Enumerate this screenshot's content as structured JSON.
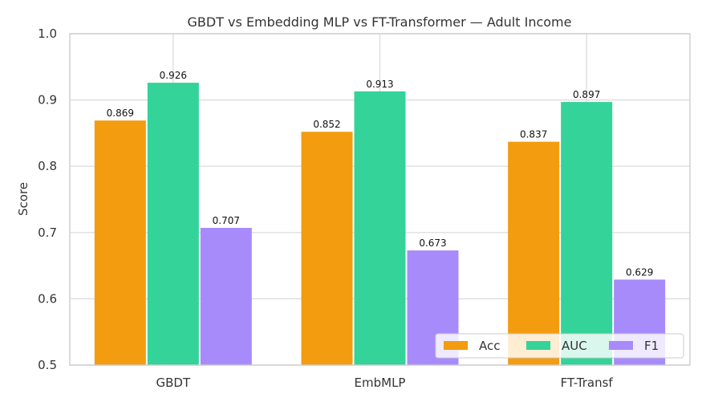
{
  "chart_data": {
    "type": "bar",
    "title": "GBDT vs Embedding MLP vs FT-Transformer — Adult Income",
    "xlabel": "",
    "ylabel": "Score",
    "ylim": [
      0.5,
      1.0
    ],
    "yticks": [
      "0.5",
      "0.6",
      "0.7",
      "0.8",
      "0.9",
      "1.0"
    ],
    "categories": [
      "GBDT",
      "EmbMLP",
      "FT-Transf"
    ],
    "series": [
      {
        "name": "Acc",
        "color": "#f39c0f",
        "values": [
          0.869,
          0.852,
          0.837
        ],
        "labels": [
          "0.869",
          "0.852",
          "0.837"
        ]
      },
      {
        "name": "AUC",
        "color": "#34d399",
        "values": [
          0.926,
          0.913,
          0.897
        ],
        "labels": [
          "0.926",
          "0.913",
          "0.897"
        ]
      },
      {
        "name": "F1",
        "color": "#a78bfa",
        "values": [
          0.707,
          0.673,
          0.629
        ],
        "labels": [
          "0.707",
          "0.673",
          "0.629"
        ]
      }
    ],
    "grid": true,
    "legend_position": "lower-right"
  }
}
